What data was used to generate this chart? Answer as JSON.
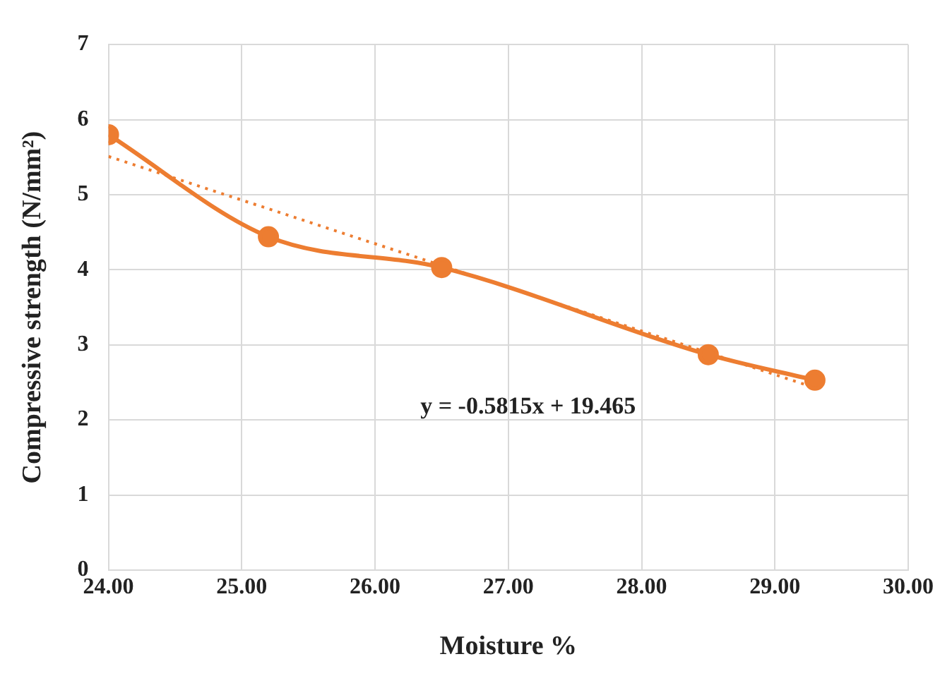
{
  "chart_data": {
    "type": "line",
    "xlabel": "Moisture %",
    "ylabel": "Compressive strength (N/mm²)",
    "series": [
      {
        "color": "#ed7d31",
        "x": [
          24.0,
          25.2,
          26.5,
          28.5,
          29.3
        ],
        "values": [
          5.8,
          4.44,
          4.03,
          2.87,
          2.53
        ],
        "marker": "circle",
        "line_style": "solid"
      },
      {
        "color": "#ed7d31",
        "x": [
          24.0,
          29.3
        ],
        "values": [
          5.51,
          2.43
        ],
        "marker": "none",
        "line_style": "dotted"
      }
    ],
    "xlim": [
      24,
      30
    ],
    "xticks": [
      {
        "value": 24,
        "label": "24.00"
      },
      {
        "value": 25,
        "label": "25.00"
      },
      {
        "value": 26,
        "label": "26.00"
      },
      {
        "value": 27,
        "label": "27.00"
      },
      {
        "value": 28,
        "label": "28.00"
      },
      {
        "value": 29,
        "label": "29.00"
      },
      {
        "value": 30,
        "label": "30.00"
      }
    ],
    "ylim": [
      0,
      7
    ],
    "yticks": [
      0,
      1,
      2,
      3,
      4,
      5,
      6,
      7
    ],
    "grid": true,
    "legend": false,
    "annotations": [
      "y = -0.5815x + 19.465"
    ]
  }
}
